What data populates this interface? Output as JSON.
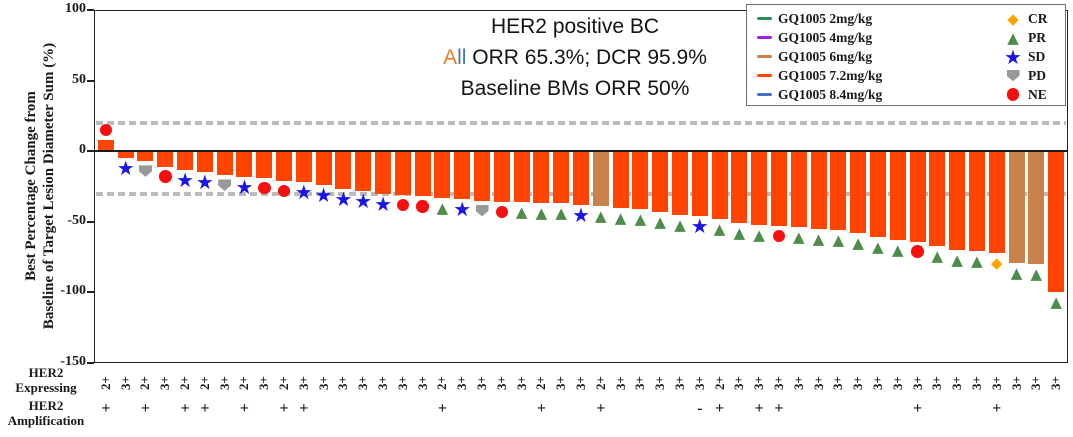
{
  "chart_data": {
    "type": "bar",
    "subtype": "waterfall",
    "title": "HER2 positive BC",
    "subtitle": {
      "word_a": "A",
      "word_ll": "ll",
      "rest": "ORR 65.3%; DCR 95.9%"
    },
    "subtitle_full": "All ORR 65.3%; DCR 95.9%",
    "subtitle2": "Baseline BMs ORR 50%",
    "ylabel_line1": "Best Percentage Change from",
    "ylabel_line2": "Baseline of Target Lesion Diameter Sum (%)",
    "ylim": [
      -150,
      100
    ],
    "yticks": [
      100,
      50,
      0,
      -50,
      -100,
      -150
    ],
    "reference_lines": [
      20,
      -30
    ],
    "reference_line_color": "#bbbbbb",
    "grid": "off",
    "legend_position": "top-right",
    "dose_colors": {
      "7.2": "#FF4500",
      "6": "#C8834C"
    },
    "series_legend": [
      {
        "label": "GQ1005 2mg/kg",
        "color": "#2E8B57"
      },
      {
        "label": "GQ1005 4mg/kg",
        "color": "#A020F0"
      },
      {
        "label": "GQ1005 6mg/kg",
        "color": "#C8834C"
      },
      {
        "label": "GQ1005 7.2mg/kg",
        "color": "#FF4500"
      },
      {
        "label": "GQ1005 8.4mg/kg",
        "color": "#4472C4"
      }
    ],
    "marker_legend": [
      {
        "label": "CR",
        "shape": "diamond",
        "color": "#FFA500"
      },
      {
        "label": "PR",
        "shape": "triangle",
        "color": "#4E8C4A"
      },
      {
        "label": "SD",
        "shape": "star",
        "color": "#1A14E8"
      },
      {
        "label": "PD",
        "shape": "pentagon",
        "color": "#999999"
      },
      {
        "label": "NE",
        "shape": "circle",
        "color": "#F50F0F"
      }
    ],
    "x_rows": {
      "expressing": [
        "HER2",
        "Expressing"
      ],
      "amplification": [
        "HER2",
        "Amplification"
      ]
    },
    "patients": [
      {
        "value": 8,
        "dose_mg_kg": "7.2",
        "response": "NE",
        "her2_expressing": "2+",
        "her2_amplification": "+"
      },
      {
        "value": -5,
        "dose_mg_kg": "7.2",
        "response": "SD",
        "her2_expressing": "3+",
        "her2_amplification": ""
      },
      {
        "value": -7,
        "dose_mg_kg": "7.2",
        "response": "PD",
        "her2_expressing": "2+",
        "her2_amplification": "+"
      },
      {
        "value": -11,
        "dose_mg_kg": "7.2",
        "response": "NE",
        "her2_expressing": "3+",
        "her2_amplification": ""
      },
      {
        "value": -13,
        "dose_mg_kg": "7.2",
        "response": "SD",
        "her2_expressing": "2+",
        "her2_amplification": "+"
      },
      {
        "value": -15,
        "dose_mg_kg": "7.2",
        "response": "SD",
        "her2_expressing": "2+",
        "her2_amplification": "+"
      },
      {
        "value": -17,
        "dose_mg_kg": "7.2",
        "response": "PD",
        "her2_expressing": "3+",
        "her2_amplification": ""
      },
      {
        "value": -18,
        "dose_mg_kg": "7.2",
        "response": "SD",
        "her2_expressing": "2+",
        "her2_amplification": "+"
      },
      {
        "value": -19,
        "dose_mg_kg": "7.2",
        "response": "NE",
        "her2_expressing": "3+",
        "her2_amplification": ""
      },
      {
        "value": -21,
        "dose_mg_kg": "7.2",
        "response": "NE",
        "her2_expressing": "2+",
        "her2_amplification": "+"
      },
      {
        "value": -22,
        "dose_mg_kg": "7.2",
        "response": "SD",
        "her2_expressing": "3+",
        "her2_amplification": "+"
      },
      {
        "value": -24,
        "dose_mg_kg": "7.2",
        "response": "SD",
        "her2_expressing": "3+",
        "her2_amplification": ""
      },
      {
        "value": -27,
        "dose_mg_kg": "7.2",
        "response": "SD",
        "her2_expressing": "3+",
        "her2_amplification": ""
      },
      {
        "value": -28,
        "dose_mg_kg": "7.2",
        "response": "SD",
        "her2_expressing": "3+",
        "her2_amplification": ""
      },
      {
        "value": -30,
        "dose_mg_kg": "7.2",
        "response": "SD",
        "her2_expressing": "3+",
        "her2_amplification": ""
      },
      {
        "value": -31,
        "dose_mg_kg": "7.2",
        "response": "NE",
        "her2_expressing": "3+",
        "her2_amplification": ""
      },
      {
        "value": -32,
        "dose_mg_kg": "7.2",
        "response": "NE",
        "her2_expressing": "3+",
        "her2_amplification": ""
      },
      {
        "value": -33,
        "dose_mg_kg": "7.2",
        "response": "PR",
        "her2_expressing": "2+",
        "her2_amplification": "+"
      },
      {
        "value": -34,
        "dose_mg_kg": "7.2",
        "response": "SD",
        "her2_expressing": "3+",
        "her2_amplification": ""
      },
      {
        "value": -35,
        "dose_mg_kg": "7.2",
        "response": "PD",
        "her2_expressing": "3+",
        "her2_amplification": ""
      },
      {
        "value": -36,
        "dose_mg_kg": "7.2",
        "response": "NE",
        "her2_expressing": "3+",
        "her2_amplification": ""
      },
      {
        "value": -36,
        "dose_mg_kg": "7.2",
        "response": "PR",
        "her2_expressing": "3+",
        "her2_amplification": ""
      },
      {
        "value": -37,
        "dose_mg_kg": "7.2",
        "response": "PR",
        "her2_expressing": "2+",
        "her2_amplification": "+"
      },
      {
        "value": -37,
        "dose_mg_kg": "7.2",
        "response": "PR",
        "her2_expressing": "3+",
        "her2_amplification": ""
      },
      {
        "value": -38,
        "dose_mg_kg": "7.2",
        "response": "SD",
        "her2_expressing": "3+",
        "her2_amplification": ""
      },
      {
        "value": -39,
        "dose_mg_kg": "6",
        "response": "PR",
        "her2_expressing": "2+",
        "her2_amplification": "+"
      },
      {
        "value": -40,
        "dose_mg_kg": "7.2",
        "response": "PR",
        "her2_expressing": "3+",
        "her2_amplification": ""
      },
      {
        "value": -41,
        "dose_mg_kg": "7.2",
        "response": "PR",
        "her2_expressing": "3+",
        "her2_amplification": ""
      },
      {
        "value": -43,
        "dose_mg_kg": "7.2",
        "response": "PR",
        "her2_expressing": "3+",
        "her2_amplification": ""
      },
      {
        "value": -45,
        "dose_mg_kg": "7.2",
        "response": "PR",
        "her2_expressing": "3+",
        "her2_amplification": ""
      },
      {
        "value": -46,
        "dose_mg_kg": "7.2",
        "response": "SD",
        "her2_expressing": "3+",
        "her2_amplification": "-"
      },
      {
        "value": -48,
        "dose_mg_kg": "7.2",
        "response": "PR",
        "her2_expressing": "2+",
        "her2_amplification": "+"
      },
      {
        "value": -51,
        "dose_mg_kg": "7.2",
        "response": "PR",
        "her2_expressing": "3+",
        "her2_amplification": ""
      },
      {
        "value": -52,
        "dose_mg_kg": "7.2",
        "response": "PR",
        "her2_expressing": "3+",
        "her2_amplification": "+"
      },
      {
        "value": -53,
        "dose_mg_kg": "7.2",
        "response": "NE",
        "her2_expressing": "3+",
        "her2_amplification": "+"
      },
      {
        "value": -54,
        "dose_mg_kg": "7.2",
        "response": "PR",
        "her2_expressing": "3+",
        "her2_amplification": ""
      },
      {
        "value": -55,
        "dose_mg_kg": "7.2",
        "response": "PR",
        "her2_expressing": "3+",
        "her2_amplification": ""
      },
      {
        "value": -56,
        "dose_mg_kg": "7.2",
        "response": "PR",
        "her2_expressing": "3+",
        "her2_amplification": ""
      },
      {
        "value": -58,
        "dose_mg_kg": "7.2",
        "response": "PR",
        "her2_expressing": "3+",
        "her2_amplification": ""
      },
      {
        "value": -61,
        "dose_mg_kg": "7.2",
        "response": "PR",
        "her2_expressing": "3+",
        "her2_amplification": ""
      },
      {
        "value": -63,
        "dose_mg_kg": "7.2",
        "response": "PR",
        "her2_expressing": "3+",
        "her2_amplification": ""
      },
      {
        "value": -64,
        "dose_mg_kg": "7.2",
        "response": "NE",
        "her2_expressing": "3+",
        "her2_amplification": "+"
      },
      {
        "value": -67,
        "dose_mg_kg": "7.2",
        "response": "PR",
        "her2_expressing": "3+",
        "her2_amplification": ""
      },
      {
        "value": -70,
        "dose_mg_kg": "7.2",
        "response": "PR",
        "her2_expressing": "3+",
        "her2_amplification": ""
      },
      {
        "value": -71,
        "dose_mg_kg": "7.2",
        "response": "PR",
        "her2_expressing": "3+",
        "her2_amplification": ""
      },
      {
        "value": -72,
        "dose_mg_kg": "7.2",
        "response": "CR",
        "her2_expressing": "3+",
        "her2_amplification": "+"
      },
      {
        "value": -79,
        "dose_mg_kg": "6",
        "response": "PR",
        "her2_expressing": "3+",
        "her2_amplification": ""
      },
      {
        "value": -80,
        "dose_mg_kg": "6",
        "response": "PR",
        "her2_expressing": "3+",
        "her2_amplification": ""
      },
      {
        "value": -100,
        "dose_mg_kg": "7.2",
        "response": "PR",
        "her2_expressing": "3+",
        "her2_amplification": ""
      }
    ]
  }
}
